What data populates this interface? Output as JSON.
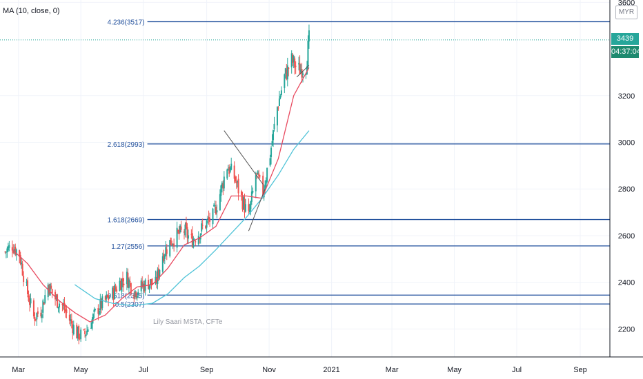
{
  "indicator_label": "MA (10, close, 0)",
  "currency": "MYR",
  "watermark": "Lily Saari MSTA, CFTe",
  "last_price": "3439",
  "countdown": "04:37:04",
  "colors": {
    "up": "#26a69a",
    "down": "#ef5350",
    "fib_line": "#1f4e9b",
    "ma_fast": "#e84a5f",
    "ma_slow": "#4fc3d7",
    "last_price_tag": "#26a69a",
    "countdown_tag": "#1e8a6f",
    "pattern_lines": "#555555"
  },
  "chart_data": {
    "type": "candlestick",
    "title": "",
    "y_axis": {
      "min": 2080,
      "max": 3610,
      "ticks": [
        2200,
        2400,
        2600,
        2800,
        3000,
        3200,
        3600
      ],
      "tick_labels": [
        "2200",
        "2400",
        "2600",
        "2800",
        "3000",
        "3200",
        "3600"
      ]
    },
    "x_axis": {
      "tick_labels": [
        "Mar",
        "May",
        "Jul",
        "Sep",
        "Nov",
        "2021",
        "Mar",
        "May",
        "Jul",
        "Sep"
      ],
      "tick_dates": [
        "2020-03-01",
        "2020-05-01",
        "2020-07-01",
        "2020-09-01",
        "2020-11-01",
        "2021-01-01",
        "2021-03-01",
        "2021-05-01",
        "2021-07-01",
        "2021-09-01"
      ],
      "start": "2020-02-12",
      "end": "2021-09-30"
    },
    "fibonacci_levels": [
      {
        "label": "4.236(3517)",
        "value": 3517
      },
      {
        "label": "2.618(2993)",
        "value": 2993
      },
      {
        "label": "1.618(2669)",
        "value": 2669
      },
      {
        "label": "1.27(2556)",
        "value": 2556
      },
      {
        "label": "0.618(2345)",
        "value": 2345
      },
      {
        "label": "0.5(2307)",
        "value": 2307
      }
    ],
    "last_close": 3439,
    "close_path": [
      [
        "2020-02-17",
        2530
      ],
      [
        "2020-02-24",
        2560
      ],
      [
        "2020-03-02",
        2520
      ],
      [
        "2020-03-09",
        2370
      ],
      [
        "2020-03-16",
        2250
      ],
      [
        "2020-03-23",
        2280
      ],
      [
        "2020-03-30",
        2390
      ],
      [
        "2020-04-06",
        2330
      ],
      [
        "2020-04-13",
        2300
      ],
      [
        "2020-04-20",
        2240
      ],
      [
        "2020-04-27",
        2180
      ],
      [
        "2020-05-04",
        2170
      ],
      [
        "2020-05-11",
        2230
      ],
      [
        "2020-05-18",
        2290
      ],
      [
        "2020-05-25",
        2320
      ],
      [
        "2020-06-01",
        2350
      ],
      [
        "2020-06-08",
        2400
      ],
      [
        "2020-06-15",
        2420
      ],
      [
        "2020-06-22",
        2360
      ],
      [
        "2020-06-29",
        2380
      ],
      [
        "2020-07-06",
        2400
      ],
      [
        "2020-07-13",
        2390
      ],
      [
        "2020-07-20",
        2520
      ],
      [
        "2020-07-27",
        2570
      ],
      [
        "2020-08-03",
        2600
      ],
      [
        "2020-08-10",
        2620
      ],
      [
        "2020-08-17",
        2580
      ],
      [
        "2020-08-24",
        2610
      ],
      [
        "2020-08-31",
        2650
      ],
      [
        "2020-09-07",
        2680
      ],
      [
        "2020-09-14",
        2780
      ],
      [
        "2020-09-21",
        2900
      ],
      [
        "2020-09-28",
        2850
      ],
      [
        "2020-10-05",
        2760
      ],
      [
        "2020-10-12",
        2680
      ],
      [
        "2020-10-19",
        2860
      ],
      [
        "2020-10-26",
        2790
      ],
      [
        "2020-11-02",
        2950
      ],
      [
        "2020-11-09",
        3150
      ],
      [
        "2020-11-16",
        3280
      ],
      [
        "2020-11-23",
        3350
      ],
      [
        "2020-11-30",
        3310
      ],
      [
        "2020-12-07",
        3330
      ],
      [
        "2020-12-10",
        3439
      ]
    ],
    "moving_averages": [
      {
        "name": "MA (10, close, 0)",
        "points": [
          [
            "2020-02-24",
            2540
          ],
          [
            "2020-03-10",
            2480
          ],
          [
            "2020-03-25",
            2390
          ],
          [
            "2020-04-10",
            2320
          ],
          [
            "2020-04-25",
            2270
          ],
          [
            "2020-05-10",
            2230
          ],
          [
            "2020-05-25",
            2260
          ],
          [
            "2020-06-10",
            2330
          ],
          [
            "2020-06-25",
            2380
          ],
          [
            "2020-07-10",
            2390
          ],
          [
            "2020-07-25",
            2460
          ],
          [
            "2020-08-10",
            2560
          ],
          [
            "2020-08-25",
            2590
          ],
          [
            "2020-09-10",
            2640
          ],
          [
            "2020-09-25",
            2770
          ],
          [
            "2020-10-10",
            2770
          ],
          [
            "2020-10-25",
            2760
          ],
          [
            "2020-11-10",
            2930
          ],
          [
            "2020-11-25",
            3200
          ],
          [
            "2020-12-10",
            3320
          ]
        ]
      },
      {
        "name": "",
        "points": [
          [
            "2020-04-25",
            2390
          ],
          [
            "2020-05-15",
            2330
          ],
          [
            "2020-06-01",
            2310
          ],
          [
            "2020-06-20",
            2300
          ],
          [
            "2020-07-10",
            2310
          ],
          [
            "2020-07-25",
            2350
          ],
          [
            "2020-08-10",
            2420
          ],
          [
            "2020-08-25",
            2470
          ],
          [
            "2020-09-10",
            2540
          ],
          [
            "2020-09-25",
            2610
          ],
          [
            "2020-10-10",
            2680
          ],
          [
            "2020-10-25",
            2760
          ],
          [
            "2020-11-10",
            2860
          ],
          [
            "2020-11-25",
            2970
          ],
          [
            "2020-12-10",
            3050
          ]
        ]
      }
    ],
    "triangle_pattern": {
      "upper": [
        [
          "2020-09-18",
          3050
        ],
        [
          "2020-10-26",
          2820
        ]
      ],
      "lower": [
        [
          "2020-10-12",
          2620
        ],
        [
          "2020-10-28",
          2800
        ]
      ],
      "wedge": [
        [
          "2020-11-28",
          3280
        ],
        [
          "2020-12-10",
          3330
        ]
      ]
    }
  }
}
